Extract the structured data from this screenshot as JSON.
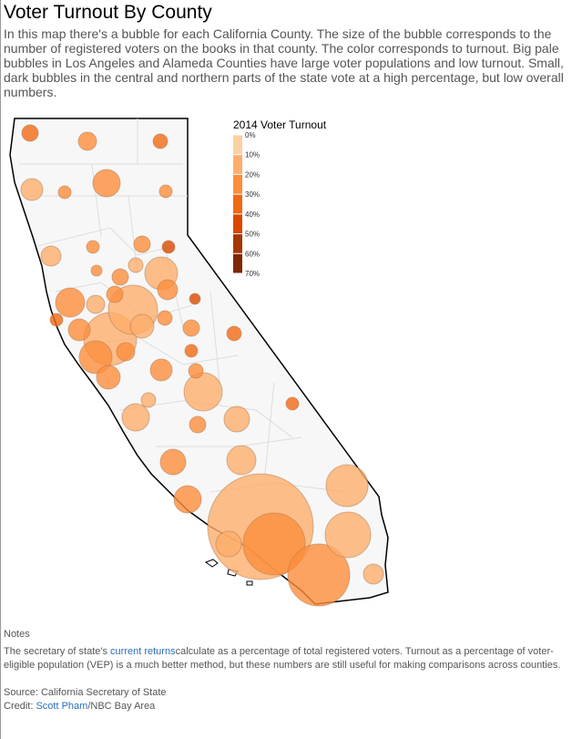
{
  "title": "Voter Turnout By County",
  "intro": "In this map there's a bubble for each California County. The size of the bubble corresponds to the number of registered voters on the books in that county. The color corresponds to turnout. Big pale bubbles in Los Angeles and Alameda Counties have large voter populations and low turnout. Small, dark bubbles in the central and northern parts of the state vote at a high percentage, but low overall numbers.",
  "legend": {
    "title": "2014 Voter Turnout",
    "colors": [
      "#fdd0a2",
      "#fdae6b",
      "#fd8d3c",
      "#f16913",
      "#d94801",
      "#a63603",
      "#7f2704"
    ],
    "ticks": [
      {
        "value": 0,
        "label": "0%"
      },
      {
        "value": 10,
        "label": "10%"
      },
      {
        "value": 20,
        "label": "20%"
      },
      {
        "value": 30,
        "label": "30%"
      },
      {
        "value": 40,
        "label": "40%"
      },
      {
        "value": 50,
        "label": "50%"
      },
      {
        "value": 60,
        "label": "60%"
      },
      {
        "value": 70,
        "label": "70%"
      }
    ]
  },
  "bubbles": [
    {
      "turnout": 30,
      "registered_voters": 116000
    },
    {
      "turnout": 22,
      "registered_voters": 143000
    },
    {
      "turnout": 35,
      "registered_voters": 91000
    },
    {
      "turnout": 18,
      "registered_voters": 205000
    },
    {
      "turnout": 28,
      "registered_voters": 70000
    },
    {
      "turnout": 28,
      "registered_voters": 321000
    },
    {
      "turnout": 25,
      "registered_voters": 70000
    },
    {
      "turnout": 15,
      "registered_voters": 173000
    },
    {
      "turnout": 25,
      "registered_voters": 70000
    },
    {
      "turnout": 22,
      "registered_voters": 116000
    },
    {
      "turnout": 45,
      "registered_voters": 70000
    },
    {
      "turnout": 22,
      "registered_voters": 51000
    },
    {
      "turnout": 18,
      "registered_voters": 91000
    },
    {
      "turnout": 18,
      "registered_voters": 462000
    },
    {
      "turnout": 25,
      "registered_voters": 116000
    },
    {
      "turnout": 28,
      "registered_voters": 365000
    },
    {
      "turnout": 15,
      "registered_voters": 143000
    },
    {
      "turnout": 22,
      "registered_voters": 116000
    },
    {
      "turnout": 28,
      "registered_voters": 173000
    },
    {
      "turnout": 40,
      "registered_voters": 51000
    },
    {
      "turnout": 12,
      "registered_voters": 1040000
    },
    {
      "turnout": 28,
      "registered_voters": 91000
    },
    {
      "turnout": 30,
      "registered_voters": 70000
    },
    {
      "turnout": 28,
      "registered_voters": 205000
    },
    {
      "turnout": 18,
      "registered_voters": 1200000
    },
    {
      "turnout": 15,
      "registered_voters": 241000
    },
    {
      "turnout": 20,
      "registered_voters": 116000
    },
    {
      "turnout": 35,
      "registered_voters": 91000
    },
    {
      "turnout": 25,
      "registered_voters": 462000
    },
    {
      "turnout": 25,
      "registered_voters": 143000
    },
    {
      "turnout": 35,
      "registered_voters": 70000
    },
    {
      "turnout": 28,
      "registered_voters": 91000
    },
    {
      "turnout": 25,
      "registered_voters": 241000
    },
    {
      "turnout": 22,
      "registered_voters": 205000
    },
    {
      "turnout": 18,
      "registered_voters": 91000
    },
    {
      "turnout": 12,
      "registered_voters": 629000
    },
    {
      "turnout": 30,
      "registered_voters": 70000
    },
    {
      "turnout": 12,
      "registered_voters": 321000
    },
    {
      "turnout": 28,
      "registered_voters": 116000
    },
    {
      "turnout": 10,
      "registered_voters": 280000
    },
    {
      "turnout": 28,
      "registered_voters": 280000
    },
    {
      "turnout": 15,
      "registered_voters": 365000
    },
    {
      "turnout": 10,
      "registered_voters": 755000
    },
    {
      "turnout": 28,
      "registered_voters": 321000
    },
    {
      "turnout": 10,
      "registered_voters": 4800000
    },
    {
      "turnout": 22,
      "registered_voters": 1650000
    },
    {
      "turnout": 10,
      "registered_voters": 892000
    },
    {
      "turnout": 22,
      "registered_voters": 1650000
    },
    {
      "turnout": 12,
      "registered_voters": 173000
    },
    {
      "turnout": 12,
      "registered_voters": 280000
    }
  ],
  "notes": {
    "heading": "Notes",
    "text_before": "The secretary of state's ",
    "link": "current returns",
    "text_after": "calculate as a percentage of total registered voters. Turnout as a percentage of voter-eligible population (VEP) is a much better method, but these numbers are still useful for making comparisons across counties.",
    "source": "Source: California Secretary of State",
    "credit_label": "Credit: ",
    "credit_link": "Scott Pham",
    "credit_org": "/NBC Bay Area"
  }
}
